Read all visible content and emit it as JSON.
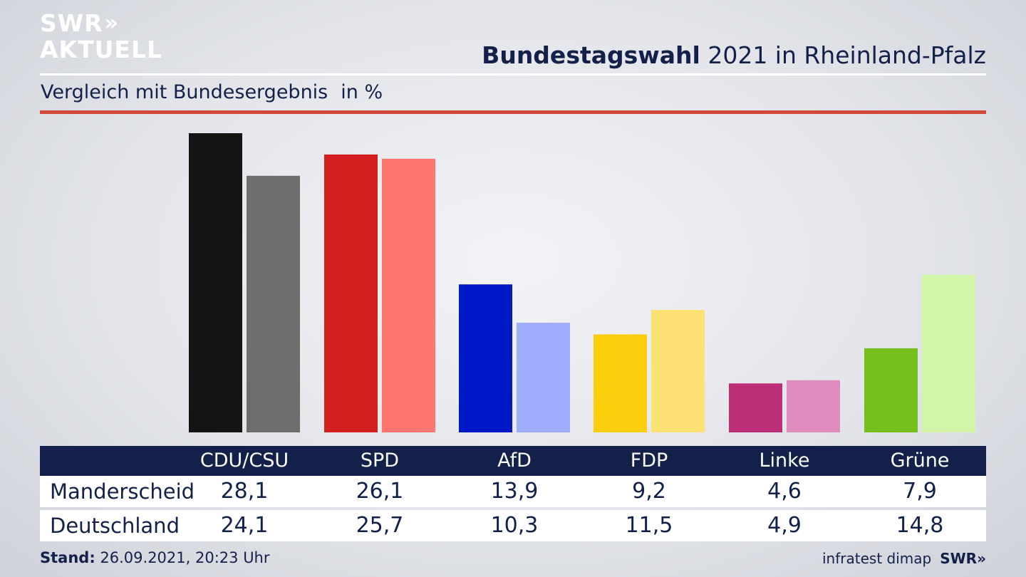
{
  "logo": {
    "line1": "SWR",
    "line1_mark": "»",
    "line2": "AKTUELL"
  },
  "header": {
    "title_bold": "Bundestagswahl",
    "title_rest": "2021 in Rheinland-Pfalz",
    "subtitle": "Vergleich mit Bundesergebnis",
    "unit": "in %"
  },
  "chart_data": {
    "type": "bar",
    "categories": [
      "CDU/CSU",
      "SPD",
      "AfD",
      "FDP",
      "Linke",
      "Grüne"
    ],
    "series": [
      {
        "name": "Manderscheid",
        "values": [
          28.1,
          26.1,
          13.9,
          9.2,
          4.6,
          7.9
        ],
        "colors": [
          "#141414",
          "#d41f1f",
          "#0019c8",
          "#fccd0a",
          "#bd2e78",
          "#76bd1e"
        ]
      },
      {
        "name": "Deutschland",
        "values": [
          24.1,
          25.7,
          10.3,
          11.5,
          4.9,
          14.8
        ],
        "colors": [
          "#6f6e6c",
          "#ff7570",
          "#9fadfd",
          "#fde172",
          "#e08bbd",
          "#d2f5a8"
        ]
      }
    ],
    "ylim": [
      0,
      28.1
    ]
  },
  "table": {
    "headers": [
      "CDU/CSU",
      "SPD",
      "AfD",
      "FDP",
      "Linke",
      "Grüne"
    ],
    "rows": [
      {
        "label": "Manderscheid",
        "values": [
          "28,1",
          "26,1",
          "13,9",
          "9,2",
          "4,6",
          "7,9"
        ]
      },
      {
        "label": "Deutschland",
        "values": [
          "24,1",
          "25,7",
          "10,3",
          "11,5",
          "4,9",
          "14,8"
        ]
      }
    ]
  },
  "footer": {
    "stand_label": "Stand:",
    "stand_value": "26.09.2021, 20:23 Uhr",
    "source": "infratest dimap",
    "brand": "SWR»"
  }
}
